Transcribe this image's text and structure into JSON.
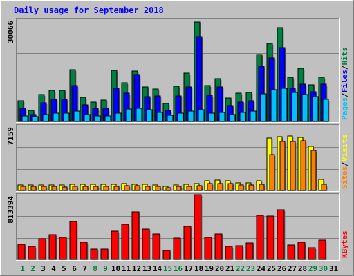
{
  "chart_data": {
    "type": "bar",
    "title": "Daily usage for September 2018",
    "categories": [
      "1",
      "2",
      "3",
      "4",
      "5",
      "6",
      "7",
      "8",
      "9",
      "10",
      "11",
      "12",
      "13",
      "14",
      "15",
      "16",
      "17",
      "18",
      "19",
      "20",
      "21",
      "22",
      "23",
      "24",
      "25",
      "26",
      "27",
      "28",
      "29",
      "30",
      "31"
    ],
    "weekend_days": [
      1,
      2,
      8,
      9,
      15,
      16,
      22,
      23,
      29,
      30
    ],
    "panels": [
      {
        "id": "hits-files-pages",
        "ymax_label": "30066",
        "ymax": 30066,
        "legend": [
          {
            "text": "Pages",
            "color": "#00c0ff"
          },
          {
            "text": "/",
            "color": "#000000"
          },
          {
            "text": "Files",
            "color": "#0000ff"
          },
          {
            "text": "/",
            "color": "#000000"
          },
          {
            "text": "Hits",
            "color": "#008040"
          }
        ],
        "series": [
          {
            "name": "Hits",
            "color": "#008040",
            "values": [
              6000,
              3200,
              7900,
              9200,
              9200,
              15300,
              7100,
              5600,
              6300,
              15100,
              11400,
              14900,
              10100,
              9500,
              5200,
              10300,
              14300,
              29300,
              10600,
              12500,
              7000,
              8300,
              8500,
              19700,
              22900,
              27600,
              12900,
              15600,
              10700,
              13000,
              0
            ]
          },
          {
            "name": "Files",
            "color": "#0000ff",
            "values": [
              3800,
              2000,
              5500,
              6500,
              6600,
              10500,
              4800,
              3900,
              3800,
              9700,
              8300,
              13800,
              7400,
              7500,
              3300,
              7500,
              10100,
              24900,
              7800,
              10200,
              4700,
              5700,
              6000,
              16200,
              18600,
              21800,
              9700,
              11000,
              8800,
              10900,
              0
            ]
          },
          {
            "name": "Pages",
            "color": "#00c0ff",
            "values": [
              1700,
              1400,
              2100,
              2400,
              2500,
              3000,
              2100,
              1700,
              1700,
              2500,
              3600,
              3900,
              3400,
              2700,
              1800,
              2400,
              3100,
              3400,
              2400,
              2700,
              2100,
              2600,
              3000,
              8100,
              9300,
              9700,
              8500,
              8000,
              7400,
              6400,
              0
            ]
          }
        ]
      },
      {
        "id": "visits-sites",
        "ymax_label": "7159",
        "ymax": 7159,
        "legend": [
          {
            "text": "Sites",
            "color": "#ff8000"
          },
          {
            "text": "/",
            "color": "#000000"
          },
          {
            "text": "Visits",
            "color": "#ffff00"
          }
        ],
        "series": [
          {
            "name": "Visits",
            "color": "#ffff00",
            "values": [
              620,
              590,
              620,
              600,
              620,
              660,
              680,
              660,
              680,
              720,
              730,
              720,
              680,
              620,
              440,
              620,
              700,
              770,
              1090,
              1180,
              1060,
              870,
              850,
              1060,
              5760,
              5950,
              6000,
              5840,
              4860,
              1190,
              0
            ]
          },
          {
            "name": "Sites",
            "color": "#ff8000",
            "values": [
              450,
              420,
              430,
              430,
              410,
              440,
              450,
              420,
              440,
              490,
              500,
              500,
              470,
              430,
              330,
              430,
              490,
              550,
              730,
              790,
              730,
              620,
              600,
              700,
              3960,
              5390,
              5410,
              5480,
              4450,
              700,
              0
            ]
          }
        ]
      },
      {
        "id": "kbytes",
        "ymax_label": "813394",
        "ymax": 813394,
        "legend": [
          {
            "text": "KBytes",
            "color": "#ff0000"
          }
        ],
        "series": [
          {
            "name": "KBytes",
            "color": "#ff0000",
            "values": [
              190000,
              165000,
              262000,
              308000,
              275000,
              472000,
              217000,
              127000,
              131000,
              356000,
              442000,
              600000,
              377000,
              316000,
              116000,
              270000,
              418000,
              813394,
              273000,
              324000,
              162000,
              171000,
              205000,
              556000,
              548000,
              624000,
              180000,
              219000,
              151000,
              238000,
              0
            ]
          }
        ]
      }
    ]
  }
}
